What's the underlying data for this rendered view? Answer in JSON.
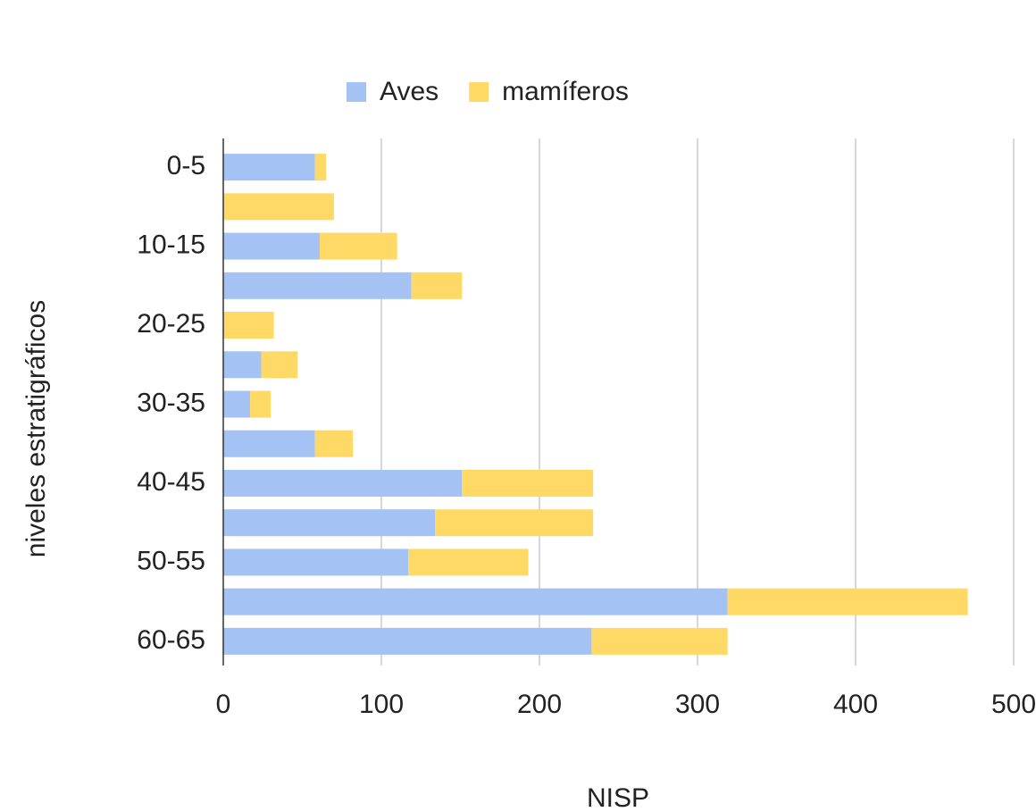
{
  "chart_data": {
    "type": "stacked-barh",
    "categories": [
      "0-5",
      null,
      "10-15",
      null,
      "20-25",
      null,
      "30-35",
      null,
      "40-45",
      null,
      "50-55",
      null,
      "60-65"
    ],
    "series": [
      {
        "name": "Aves",
        "color": "#a4c2f4",
        "values": [
          58,
          0,
          61,
          119,
          0,
          24,
          17,
          58,
          151,
          134,
          117,
          319,
          233
        ]
      },
      {
        "name": "mamíferos",
        "color": "#ffd966",
        "values": [
          7,
          70,
          49,
          32,
          32,
          23,
          13,
          24,
          83,
          100,
          76,
          152,
          86
        ]
      }
    ],
    "xlabel": "NISP",
    "ylabel": "niveles estratigráficos",
    "xlim": [
      0,
      500
    ],
    "xticks": [
      0,
      100,
      200,
      300,
      400,
      500
    ],
    "grid": true,
    "legend": "top"
  }
}
